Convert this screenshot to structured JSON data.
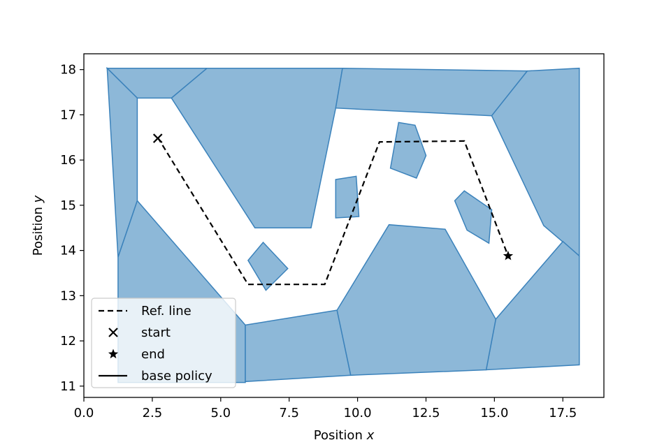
{
  "chart_data": {
    "type": "line",
    "xlabel": "Position x",
    "ylabel": "Position y",
    "xlabel_base": "Position ",
    "xlabel_var": "x",
    "ylabel_base": "Position ",
    "ylabel_var": "y",
    "xlim": [
      0,
      19
    ],
    "ylim": [
      10.75,
      18.35
    ],
    "xticks": [
      0.0,
      2.5,
      5.0,
      7.5,
      10.0,
      12.5,
      15.0,
      17.5
    ],
    "xtick_labels": [
      "0.0",
      "2.5",
      "5.0",
      "7.5",
      "10.0",
      "12.5",
      "15.0",
      "17.5"
    ],
    "yticks": [
      11,
      12,
      13,
      14,
      15,
      16,
      17,
      18
    ],
    "ytick_labels": [
      "11",
      "12",
      "13",
      "14",
      "15",
      "16",
      "17",
      "18"
    ],
    "grid": false,
    "legend_position": "lower-left",
    "colors": {
      "obstacle_fill": "#8db8d8",
      "obstacle_edge": "#3b82bb",
      "ref_line": "#000000"
    },
    "legend": [
      {
        "label": "Ref. line",
        "marker": "dashed-line"
      },
      {
        "label": "start",
        "marker": "x"
      },
      {
        "label": "end",
        "marker": "star"
      },
      {
        "label": "base policy",
        "marker": "solid-line"
      }
    ],
    "ref_line": {
      "x": [
        2.7,
        6.0,
        8.8,
        10.8,
        13.9,
        15.5
      ],
      "y": [
        16.5,
        13.25,
        13.25,
        16.4,
        16.42,
        13.88
      ]
    },
    "start": {
      "x": 2.7,
      "y": 16.48
    },
    "end": {
      "x": 15.5,
      "y": 13.88
    },
    "obstacles": [
      [
        [
          0.85,
          18.03
        ],
        [
          4.5,
          18.03
        ],
        [
          3.2,
          17.37
        ],
        [
          1.95,
          17.37
        ]
      ],
      [
        [
          0.85,
          18.03
        ],
        [
          1.95,
          17.37
        ],
        [
          1.95,
          15.1
        ],
        [
          1.25,
          13.85
        ]
      ],
      [
        [
          1.95,
          15.1
        ],
        [
          1.25,
          13.85
        ],
        [
          1.25,
          11.08
        ],
        [
          5.9,
          11.08
        ],
        [
          5.9,
          12.35
        ]
      ],
      [
        [
          4.5,
          18.03
        ],
        [
          9.45,
          18.03
        ],
        [
          9.2,
          17.15
        ],
        [
          8.3,
          14.5
        ],
        [
          6.25,
          14.5
        ],
        [
          3.2,
          17.37
        ]
      ],
      [
        [
          9.45,
          18.03
        ],
        [
          16.2,
          17.97
        ],
        [
          14.9,
          16.98
        ],
        [
          9.2,
          17.15
        ]
      ],
      [
        [
          16.2,
          17.97
        ],
        [
          18.1,
          18.03
        ],
        [
          18.1,
          13.88
        ],
        [
          16.8,
          14.55
        ],
        [
          14.9,
          16.98
        ]
      ],
      [
        [
          18.1,
          13.88
        ],
        [
          17.5,
          14.2
        ],
        [
          15.05,
          12.48
        ],
        [
          14.7,
          11.36
        ],
        [
          18.1,
          11.47
        ]
      ],
      [
        [
          5.9,
          12.35
        ],
        [
          9.25,
          12.68
        ],
        [
          9.75,
          11.24
        ],
        [
          5.9,
          11.1
        ]
      ],
      [
        [
          9.25,
          12.68
        ],
        [
          11.15,
          14.57
        ],
        [
          13.2,
          14.47
        ],
        [
          15.05,
          12.48
        ],
        [
          14.7,
          11.36
        ],
        [
          9.75,
          11.24
        ]
      ],
      [
        [
          6.55,
          14.18
        ],
        [
          7.45,
          13.6
        ],
        [
          6.65,
          13.12
        ],
        [
          6.0,
          13.78
        ]
      ],
      [
        [
          9.2,
          15.57
        ],
        [
          9.95,
          15.64
        ],
        [
          10.05,
          14.75
        ],
        [
          9.2,
          14.72
        ]
      ],
      [
        [
          11.5,
          16.83
        ],
        [
          12.1,
          16.77
        ],
        [
          12.5,
          16.1
        ],
        [
          12.15,
          15.6
        ],
        [
          11.2,
          15.82
        ]
      ],
      [
        [
          13.55,
          15.1
        ],
        [
          13.9,
          15.32
        ],
        [
          14.9,
          14.9
        ],
        [
          14.8,
          14.16
        ],
        [
          14.0,
          14.45
        ]
      ]
    ]
  }
}
